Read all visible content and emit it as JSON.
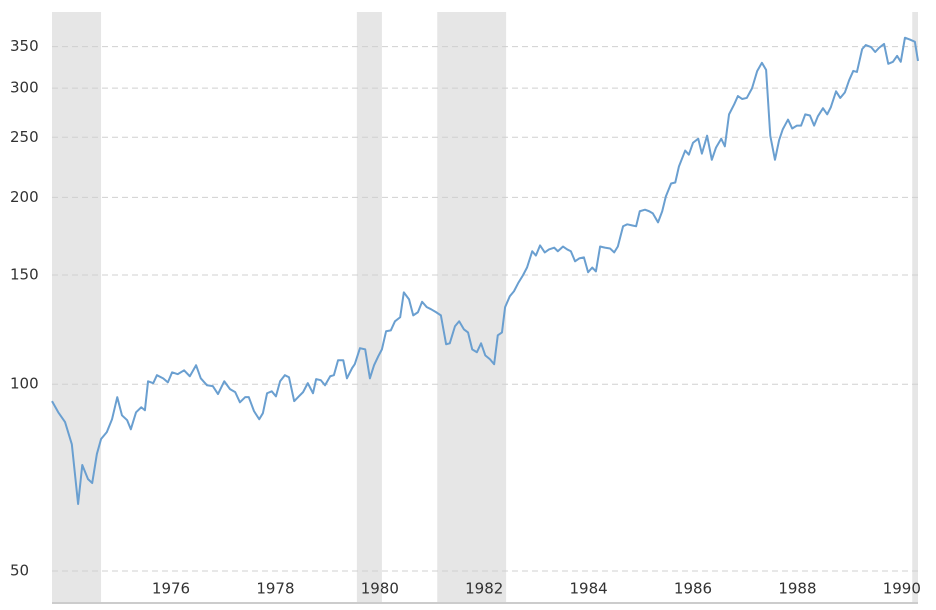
{
  "chart_data": {
    "type": "line",
    "log_scale": true,
    "grid": true,
    "color": "#6a9fd0",
    "shade_color": "#e6e6e6",
    "xlim": [
      1973.72,
      1990.31
    ],
    "xticks": [
      1976,
      1978,
      1980,
      1982,
      1984,
      1986,
      1988,
      1990
    ],
    "ylim": [
      44.4,
      398
    ],
    "yticks": [
      50,
      100,
      150,
      200,
      250,
      300,
      350
    ],
    "shaded_regions": [
      [
        1973.72,
        1974.66
      ],
      [
        1979.56,
        1980.04
      ],
      [
        1981.1,
        1982.42
      ],
      [
        1990.2,
        1990.31
      ]
    ],
    "x": [
      1973.72,
      1973.84,
      1973.97,
      1974.1,
      1974.22,
      1974.3,
      1974.41,
      1974.49,
      1974.58,
      1974.66,
      1974.77,
      1974.87,
      1974.97,
      1975.06,
      1975.16,
      1975.23,
      1975.33,
      1975.43,
      1975.5,
      1975.56,
      1975.66,
      1975.73,
      1975.85,
      1975.94,
      1976.02,
      1976.13,
      1976.25,
      1976.36,
      1976.48,
      1976.57,
      1976.69,
      1976.8,
      1976.9,
      1977.02,
      1977.13,
      1977.23,
      1977.32,
      1977.42,
      1977.49,
      1977.59,
      1977.69,
      1977.76,
      1977.84,
      1977.93,
      1978.01,
      1978.09,
      1978.18,
      1978.26,
      1978.36,
      1978.45,
      1978.53,
      1978.62,
      1978.72,
      1978.78,
      1978.87,
      1978.95,
      1979.05,
      1979.12,
      1979.2,
      1979.3,
      1979.37,
      1979.47,
      1979.52,
      1979.62,
      1979.72,
      1979.81,
      1979.89,
      1979.97,
      1980.04,
      1980.12,
      1980.21,
      1980.29,
      1980.39,
      1980.46,
      1980.56,
      1980.64,
      1980.73,
      1980.81,
      1980.9,
      1980.98,
      1981.08,
      1981.17,
      1981.27,
      1981.34,
      1981.44,
      1981.52,
      1981.61,
      1981.69,
      1981.77,
      1981.86,
      1981.94,
      1982.02,
      1982.11,
      1982.19,
      1982.26,
      1982.34,
      1982.4,
      1982.49,
      1982.57,
      1982.65,
      1982.74,
      1982.82,
      1982.92,
      1982.99,
      1983.07,
      1983.16,
      1983.24,
      1983.34,
      1983.41,
      1983.51,
      1983.59,
      1983.66,
      1983.74,
      1983.82,
      1983.91,
      1983.99,
      1984.07,
      1984.14,
      1984.22,
      1984.31,
      1984.41,
      1984.49,
      1984.56,
      1984.66,
      1984.74,
      1984.83,
      1984.91,
      1984.98,
      1985.08,
      1985.16,
      1985.23,
      1985.33,
      1985.41,
      1985.48,
      1985.58,
      1985.66,
      1985.73,
      1985.85,
      1985.92,
      1986.0,
      1986.1,
      1986.17,
      1986.27,
      1986.36,
      1986.44,
      1986.54,
      1986.61,
      1986.69,
      1986.79,
      1986.86,
      1986.94,
      1987.03,
      1987.13,
      1987.23,
      1987.32,
      1987.4,
      1987.48,
      1987.57,
      1987.65,
      1987.72,
      1987.82,
      1987.9,
      1987.99,
      1988.07,
      1988.15,
      1988.24,
      1988.32,
      1988.39,
      1988.49,
      1988.57,
      1988.64,
      1988.74,
      1988.82,
      1988.91,
      1988.99,
      1989.07,
      1989.14,
      1989.24,
      1989.31,
      1989.41,
      1989.49,
      1989.56,
      1989.66,
      1989.74,
      1989.83,
      1989.91,
      1989.98,
      1990.06,
      1990.16,
      1990.25,
      1990.31
    ],
    "values": [
      93.9,
      90.1,
      86.9,
      80.0,
      64.1,
      74.1,
      70.3,
      69.3,
      77.2,
      81.6,
      83.7,
      87.8,
      95.3,
      89.1,
      87.5,
      84.6,
      90.1,
      91.8,
      90.8,
      101.1,
      100.4,
      103.4,
      102.2,
      100.7,
      104.5,
      103.8,
      105.3,
      103.0,
      107.3,
      102.2,
      99.6,
      99.3,
      96.4,
      101.1,
      98.2,
      97.1,
      93.5,
      95.3,
      95.3,
      90.5,
      87.8,
      89.8,
      96.7,
      97.4,
      95.6,
      101.1,
      103.4,
      102.6,
      93.9,
      95.6,
      97.1,
      100.4,
      96.7,
      101.9,
      101.5,
      99.6,
      103.0,
      103.4,
      109.3,
      109.3,
      102.2,
      106.2,
      107.7,
      114.3,
      113.8,
      102.2,
      107.3,
      110.9,
      113.8,
      121.7,
      122.1,
      126.3,
      128.2,
      140.6,
      137.0,
      129.1,
      130.6,
      135.8,
      133.1,
      132.1,
      130.6,
      129.1,
      116.0,
      116.4,
      124.0,
      126.3,
      122.6,
      121.2,
      113.8,
      112.6,
      116.4,
      111.3,
      109.7,
      107.7,
      119.9,
      121.2,
      133.1,
      138.6,
      141.2,
      145.5,
      149.7,
      154.2,
      163.8,
      161.2,
      167.4,
      163.1,
      164.9,
      166.0,
      163.8,
      166.7,
      164.9,
      163.8,
      157.8,
      159.5,
      160.1,
      151.5,
      154.2,
      152.0,
      166.7,
      166.0,
      165.5,
      163.1,
      166.7,
      179.7,
      181.0,
      180.3,
      179.7,
      190.0,
      191.1,
      190.0,
      188.5,
      182.3,
      190.0,
      200.8,
      210.6,
      211.4,
      224.3,
      238.0,
      234.4,
      245.0,
      248.7,
      235.3,
      251.5,
      230.0,
      240.6,
      248.7,
      241.8,
      272.2,
      282.7,
      291.4,
      288.2,
      289.3,
      299.8,
      319.8,
      329.6,
      321.1,
      251.5,
      230.0,
      247.5,
      257.6,
      267.0,
      258.3,
      261.1,
      261.1,
      272.2,
      271.1,
      261.1,
      270.1,
      278.5,
      272.2,
      279.5,
      296.5,
      289.3,
      295.4,
      308.9,
      319.8,
      318.6,
      346.8,
      352.1,
      349.5,
      343.1,
      348.2,
      353.5,
      328.4,
      330.8,
      338.2,
      330.8,
      361.8,
      359.1,
      356.4,
      331.9
    ]
  }
}
